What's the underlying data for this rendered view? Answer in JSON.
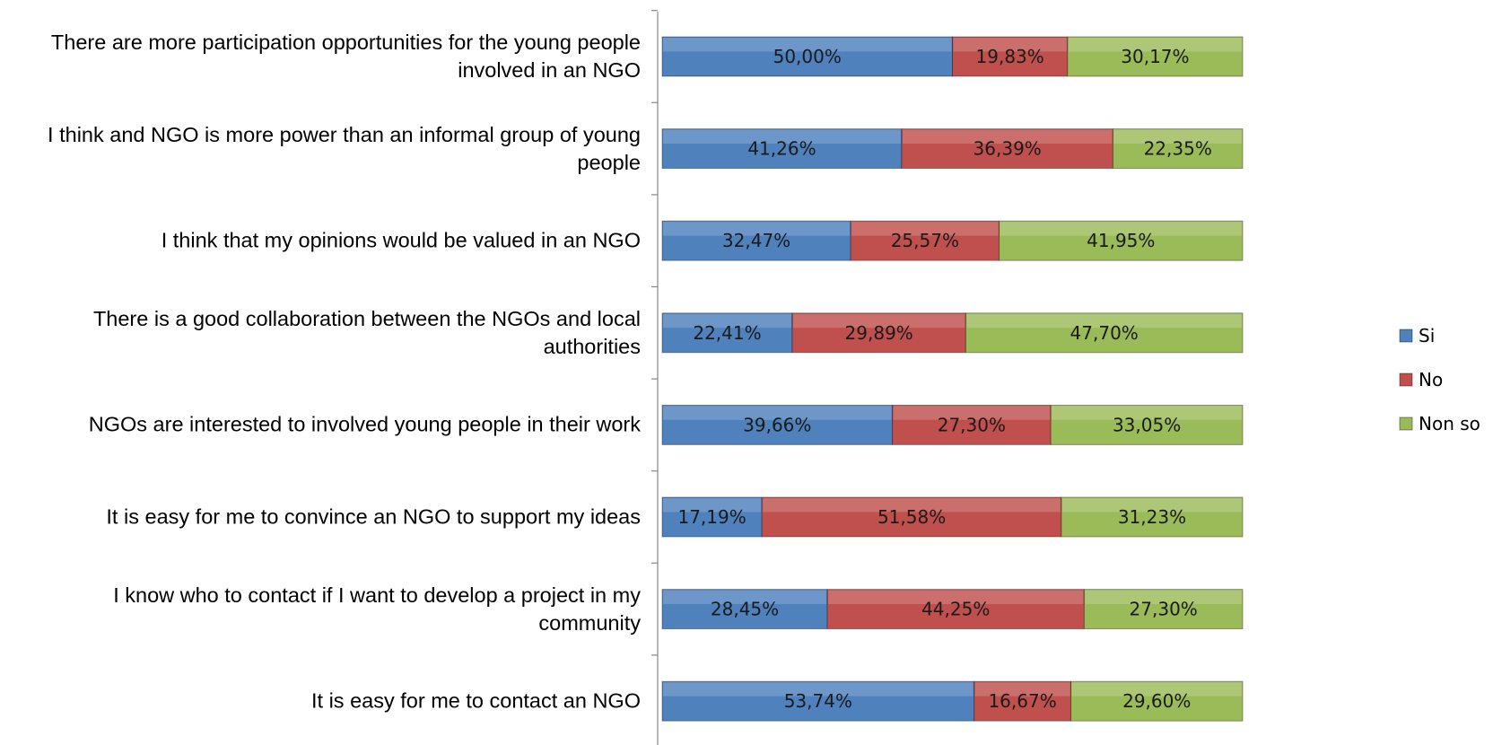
{
  "chart_data": {
    "type": "bar",
    "orientation": "horizontal",
    "stacked": "percent",
    "categories": [
      "There are more participation opportunities for the young people involved in an NGO",
      "I think and NGO is more power than an informal group of young people",
      "I think that my opinions would be valued in an NGO",
      "There is a good collaboration between the NGOs and local authorities",
      "NGOs are interested to involved young people in their work",
      "It is easy for me to convince an NGO to support my ideas",
      "I know who to contact if I want to develop a project in my community",
      "It is easy for me to contact an NGO"
    ],
    "series": [
      {
        "name": "Si",
        "color": "#4f81bd",
        "values": [
          50.0,
          41.26,
          32.47,
          22.41,
          39.66,
          17.19,
          28.45,
          53.74
        ],
        "value_labels": [
          "50,00%",
          "41,26%",
          "32,47%",
          "22,41%",
          "39,66%",
          "17,19%",
          "28,45%",
          "53,74%"
        ]
      },
      {
        "name": "No",
        "color": "#c0504d",
        "values": [
          19.83,
          36.39,
          25.57,
          29.89,
          27.3,
          51.58,
          44.25,
          16.67
        ],
        "value_labels": [
          "19,83%",
          "36,39%",
          "25,57%",
          "29,89%",
          "27,30%",
          "51,58%",
          "44,25%",
          "16,67%"
        ]
      },
      {
        "name": "Non so",
        "color": "#9bbb59",
        "values": [
          30.17,
          22.35,
          41.95,
          47.7,
          33.05,
          31.23,
          27.3,
          29.6
        ],
        "value_labels": [
          "30,17%",
          "22,35%",
          "41,95%",
          "47,70%",
          "33,05%",
          "31,23%",
          "27,30%",
          "29,60%"
        ]
      }
    ],
    "legend": "right"
  }
}
